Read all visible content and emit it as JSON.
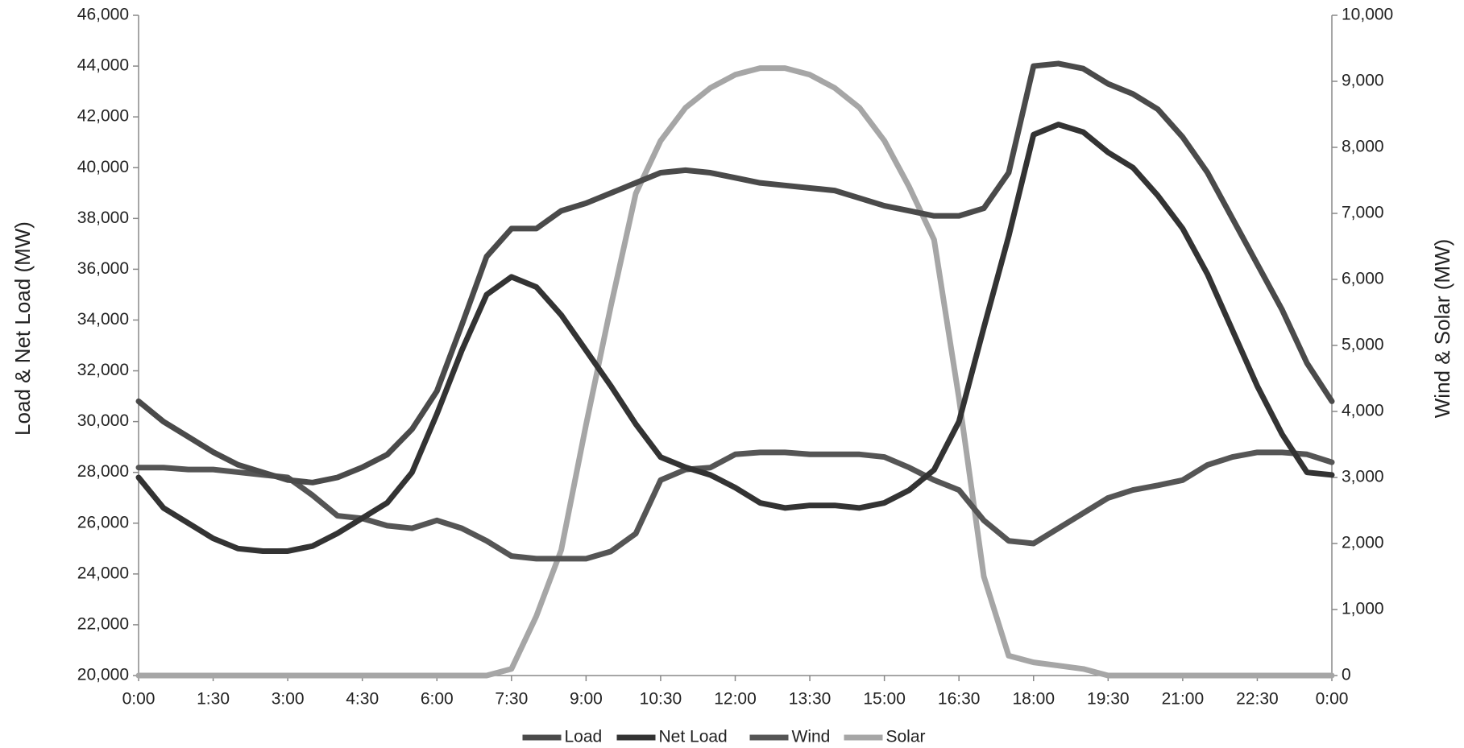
{
  "chart_data": {
    "type": "line",
    "y_label": "Load & Net Load (MW)",
    "y2_label": "Wind & Solar (MW)",
    "x": [
      0,
      0.5,
      1,
      1.5,
      2,
      2.5,
      3,
      3.5,
      4,
      4.5,
      5,
      5.5,
      6,
      6.5,
      7,
      7.5,
      8,
      8.5,
      9,
      9.5,
      10,
      10.5,
      11,
      11.5,
      12,
      12.5,
      13,
      13.5,
      14,
      14.5,
      15,
      15.5,
      16,
      16.5,
      17,
      17.5,
      18,
      18.5,
      19,
      19.5,
      20,
      20.5,
      21,
      21.5,
      22,
      22.5,
      23,
      23.5,
      24
    ],
    "xlim": [
      0,
      24
    ],
    "xticks": [
      {
        "value": 0,
        "label": "0:00"
      },
      {
        "value": 1.5,
        "label": "1:30"
      },
      {
        "value": 3,
        "label": "3:00"
      },
      {
        "value": 4.5,
        "label": "4:30"
      },
      {
        "value": 6,
        "label": "6:00"
      },
      {
        "value": 7.5,
        "label": "7:30"
      },
      {
        "value": 9,
        "label": "9:00"
      },
      {
        "value": 10.5,
        "label": "10:30"
      },
      {
        "value": 12,
        "label": "12:00"
      },
      {
        "value": 13.5,
        "label": "13:30"
      },
      {
        "value": 15,
        "label": "15:00"
      },
      {
        "value": 16.5,
        "label": "16:30"
      },
      {
        "value": 18,
        "label": "18:00"
      },
      {
        "value": 19.5,
        "label": "19:30"
      },
      {
        "value": 21,
        "label": "21:00"
      },
      {
        "value": 22.5,
        "label": "22:30"
      },
      {
        "value": 24,
        "label": "0:00"
      }
    ],
    "ylim": [
      20000,
      46000
    ],
    "yticks": [
      {
        "value": 20000,
        "label": "20,000"
      },
      {
        "value": 22000,
        "label": "22,000"
      },
      {
        "value": 24000,
        "label": "24,000"
      },
      {
        "value": 26000,
        "label": "26,000"
      },
      {
        "value": 28000,
        "label": "28,000"
      },
      {
        "value": 30000,
        "label": "30,000"
      },
      {
        "value": 32000,
        "label": "32,000"
      },
      {
        "value": 34000,
        "label": "34,000"
      },
      {
        "value": 36000,
        "label": "36,000"
      },
      {
        "value": 38000,
        "label": "38,000"
      },
      {
        "value": 40000,
        "label": "40,000"
      },
      {
        "value": 42000,
        "label": "42,000"
      },
      {
        "value": 44000,
        "label": "44,000"
      },
      {
        "value": 46000,
        "label": "46,000"
      }
    ],
    "y2lim": [
      0,
      10000
    ],
    "y2ticks": [
      0,
      {
        "value": 1000,
        "label": "1,000"
      },
      {
        "value": 2000,
        "label": "2,000"
      },
      {
        "value": 3000,
        "label": "3,000"
      },
      {
        "value": 4000,
        "label": "4,000"
      },
      {
        "value": 5000,
        "label": "5,000"
      },
      {
        "value": 6000,
        "label": "6,000"
      },
      {
        "value": 7000,
        "label": "7,000"
      },
      {
        "value": 8000,
        "label": "8,000"
      },
      {
        "value": 9000,
        "label": "9,000"
      },
      {
        "value": 10000,
        "label": "10,000"
      }
    ],
    "legend": "bottom",
    "series": [
      {
        "name": "Load",
        "color": "#4a4a4a",
        "values": [
          30800,
          30000,
          29400,
          28800,
          28300,
          28000,
          27700,
          27600,
          27800,
          28200,
          28700,
          29700,
          31200,
          33800,
          36500,
          37600,
          37600,
          38300,
          38600,
          39000,
          39400,
          39800,
          39900,
          39800,
          39600,
          39400,
          39300,
          39200,
          39100,
          38800,
          38500,
          38300,
          38100,
          38100,
          38400,
          39800,
          44000,
          44100,
          43900,
          43300,
          42900,
          42300,
          41200,
          39800,
          38000,
          36200,
          34400,
          32300,
          30800
        ]
      },
      {
        "name": "Net Load",
        "color": "#333333",
        "values": [
          27800,
          26600,
          26000,
          25400,
          25000,
          24900,
          24900,
          25100,
          25600,
          26200,
          26800,
          28000,
          30300,
          32800,
          35000,
          35700,
          35300,
          34200,
          32800,
          31400,
          29900,
          28600,
          28200,
          27900,
          27400,
          26800,
          26600,
          26700,
          26700,
          26600,
          26800,
          27300,
          28100,
          30000,
          33700,
          37300,
          41300,
          41700,
          41400,
          40600,
          40000,
          38900,
          37600,
          35800,
          33600,
          31400,
          29500,
          28000,
          27900
        ]
      },
      {
        "name": "Wind",
        "color": "#555555",
        "axis": "y2",
        "values": [
          3150,
          3150,
          3120,
          3120,
          3080,
          3040,
          3000,
          2730,
          2420,
          2380,
          2270,
          2230,
          2350,
          2230,
          2040,
          1810,
          1770,
          1770,
          1770,
          1880,
          2150,
          2960,
          3120,
          3150,
          3350,
          3380,
          3380,
          3350,
          3350,
          3350,
          3310,
          3150,
          2960,
          2810,
          2350,
          2040,
          2000,
          2230,
          2460,
          2690,
          2810,
          2880,
          2960,
          3190,
          3310,
          3380,
          3380,
          3350,
          3230
        ]
      },
      {
        "name": "Solar",
        "color": "#a6a6a6",
        "axis": "y2",
        "values": [
          0,
          0,
          0,
          0,
          0,
          0,
          0,
          0,
          0,
          0,
          0,
          0,
          0,
          0,
          0,
          100,
          900,
          1900,
          3800,
          5600,
          7300,
          8100,
          8600,
          8900,
          9100,
          9200,
          9200,
          9100,
          8900,
          8600,
          8100,
          7400,
          6600,
          4200,
          1500,
          300,
          200,
          150,
          100,
          0,
          0,
          0,
          0,
          0,
          0,
          0,
          0,
          0,
          0
        ]
      }
    ]
  }
}
